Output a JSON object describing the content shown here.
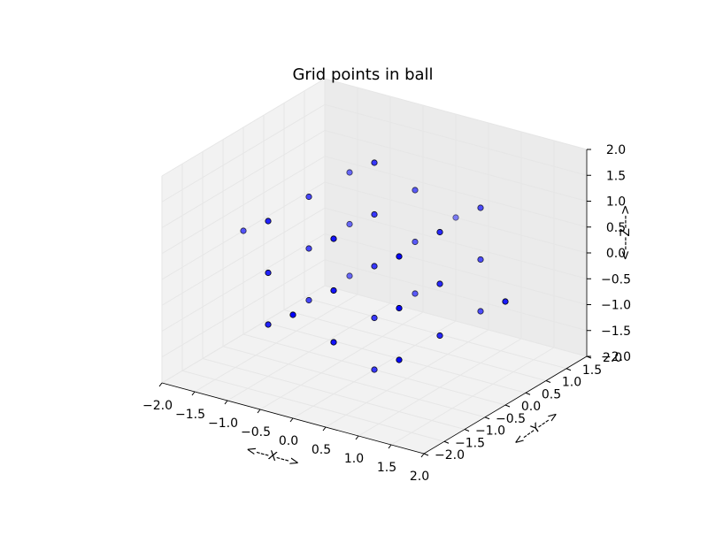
{
  "chart_data": {
    "type": "scatter",
    "title": "Grid points in ball",
    "xlabel": "<---X--->",
    "ylabel": "<---Y--->",
    "zlabel": "<---Z--->",
    "projection": "3d",
    "xlim": [
      -2.0,
      2.0
    ],
    "ylim": [
      -2.0,
      2.0
    ],
    "zlim": [
      -2.0,
      2.0
    ],
    "x_ticks": [
      "−2.0",
      "−1.5",
      "−1.0",
      "−0.5",
      "0.0",
      "0.5",
      "1.0",
      "1.5",
      "2.0"
    ],
    "y_ticks": [
      "−2.0",
      "−1.5",
      "−1.0",
      "−0.5",
      "0.0",
      "0.5",
      "1.0",
      "1.5",
      "2.0"
    ],
    "z_ticks": [
      "−2.0",
      "−1.5",
      "−1.0",
      "−0.5",
      "0.0",
      "0.5",
      "1.0",
      "1.5",
      "2.0"
    ],
    "grid": true,
    "marker_color": "#0000ff",
    "points": [
      {
        "x": 0,
        "y": 0,
        "z": 2
      },
      {
        "x": -1,
        "y": -1,
        "z": 1
      },
      {
        "x": -1,
        "y": 0,
        "z": 1
      },
      {
        "x": -1,
        "y": 1,
        "z": 1
      },
      {
        "x": 0,
        "y": -1,
        "z": 1
      },
      {
        "x": 0,
        "y": 0,
        "z": 1
      },
      {
        "x": 0,
        "y": 1,
        "z": 1
      },
      {
        "x": 1,
        "y": -1,
        "z": 1
      },
      {
        "x": 1,
        "y": 0,
        "z": 1
      },
      {
        "x": 1,
        "y": 1,
        "z": 1
      },
      {
        "x": -2,
        "y": 0,
        "z": 0
      },
      {
        "x": 0,
        "y": 2,
        "z": 0
      },
      {
        "x": -1,
        "y": -1,
        "z": 0
      },
      {
        "x": -1,
        "y": 0,
        "z": 0
      },
      {
        "x": -1,
        "y": 1,
        "z": 0
      },
      {
        "x": 0,
        "y": -1,
        "z": 0
      },
      {
        "x": 0,
        "y": 0,
        "z": 0
      },
      {
        "x": 0,
        "y": 1,
        "z": 0
      },
      {
        "x": 1,
        "y": -1,
        "z": 0
      },
      {
        "x": 1,
        "y": 0,
        "z": 0
      },
      {
        "x": 1,
        "y": 1,
        "z": 0
      },
      {
        "x": 0,
        "y": -2,
        "z": 0
      },
      {
        "x": 2,
        "y": 0,
        "z": 0
      },
      {
        "x": -1,
        "y": -1,
        "z": -1
      },
      {
        "x": -1,
        "y": 0,
        "z": -1
      },
      {
        "x": -1,
        "y": 1,
        "z": -1
      },
      {
        "x": 0,
        "y": -1,
        "z": -1
      },
      {
        "x": 0,
        "y": 0,
        "z": -1
      },
      {
        "x": 0,
        "y": 1,
        "z": -1
      },
      {
        "x": 1,
        "y": -1,
        "z": -1
      },
      {
        "x": 1,
        "y": 0,
        "z": -1
      },
      {
        "x": 1,
        "y": 1,
        "z": -1
      },
      {
        "x": 0,
        "y": 0,
        "z": -2
      }
    ]
  }
}
